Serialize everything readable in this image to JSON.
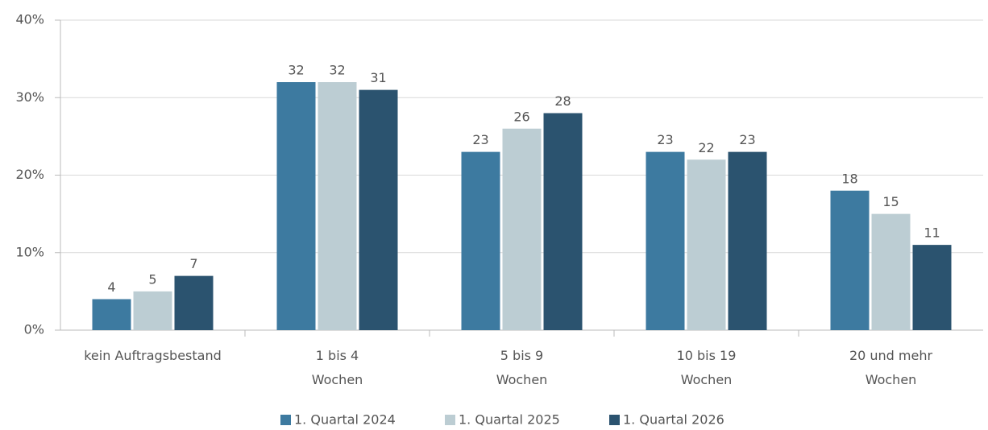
{
  "chart_data": {
    "type": "bar",
    "categories": [
      "kein Auftragsbestand",
      "1 bis 4\nWochen",
      "5 bis 9\nWochen",
      "10 bis 19\nWochen",
      "20 und mehr\nWochen"
    ],
    "series": [
      {
        "name": "1. Quartal 2024",
        "color": "#3d7aa0",
        "values": [
          4,
          32,
          23,
          23,
          18
        ]
      },
      {
        "name": "1. Quartal 2025",
        "color": "#bccdd3",
        "values": [
          5,
          32,
          26,
          22,
          15
        ]
      },
      {
        "name": "1. Quartal 2026",
        "color": "#2b536f",
        "values": [
          7,
          31,
          28,
          23,
          11
        ]
      }
    ],
    "ylim": [
      0,
      40
    ],
    "yticks": [
      {
        "value": 0,
        "label": "0%"
      },
      {
        "value": 10,
        "label": "10%"
      },
      {
        "value": 20,
        "label": "20%"
      },
      {
        "value": 30,
        "label": "30%"
      },
      {
        "value": 40,
        "label": "40%"
      }
    ],
    "grid": true,
    "legend": "bottom"
  }
}
